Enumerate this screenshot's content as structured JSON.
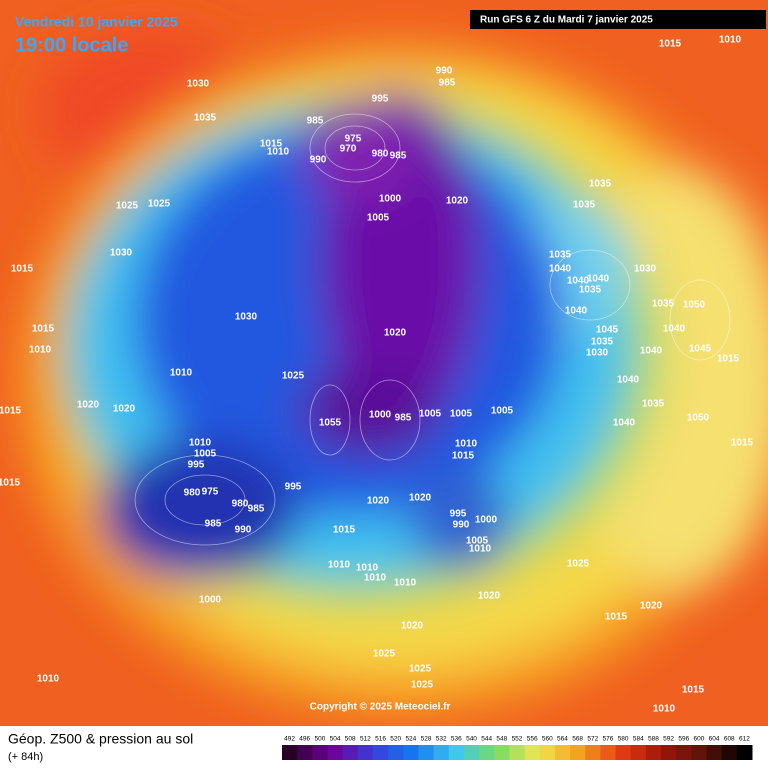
{
  "header": {
    "date": "Vendredi 10 janvier 2025",
    "time": "19:00 locale",
    "run": "Run GFS 6 Z du Mardi 7 janvier 2025"
  },
  "map": {
    "copyright": "Copyright © 2025 Meteociel.fr",
    "isobar_labels": [
      990,
      985,
      995,
      985,
      1015,
      1010,
      975,
      970,
      980,
      985,
      990,
      1030,
      1035,
      1025,
      1025,
      1030,
      1000,
      1005,
      1020,
      1035,
      1035,
      1035,
      1040,
      1040,
      1040,
      1035,
      1030,
      1040,
      1035,
      1050,
      1045,
      1035,
      1030,
      1040,
      1040,
      1045,
      1015,
      1040,
      1035,
      1040,
      1050,
      1015,
      1020,
      1030,
      1010,
      1025,
      1010,
      1015,
      1015,
      1020,
      1020,
      1010,
      1005,
      995,
      980,
      975,
      980,
      985,
      985,
      990,
      995,
      1055,
      1000,
      985,
      1005,
      1005,
      1005,
      1010,
      1015,
      1020,
      1020,
      995,
      990,
      1000,
      1005,
      1010,
      1015,
      1010,
      1010,
      1010,
      1010,
      1020,
      1025,
      1020,
      1015,
      1020,
      1025,
      1025,
      1025,
      1000,
      1010,
      1015,
      1010,
      1015,
      1010,
      1015,
      1015
    ]
  },
  "footer": {
    "title": "Géop. Z500 & pression au sol",
    "lead": "(+ 84h)",
    "scale": [
      492,
      496,
      500,
      504,
      508,
      512,
      516,
      520,
      524,
      528,
      532,
      536,
      540,
      544,
      548,
      552,
      556,
      560,
      564,
      568,
      572,
      576,
      580,
      584,
      588,
      592,
      596,
      600,
      604,
      608,
      612
    ]
  }
}
